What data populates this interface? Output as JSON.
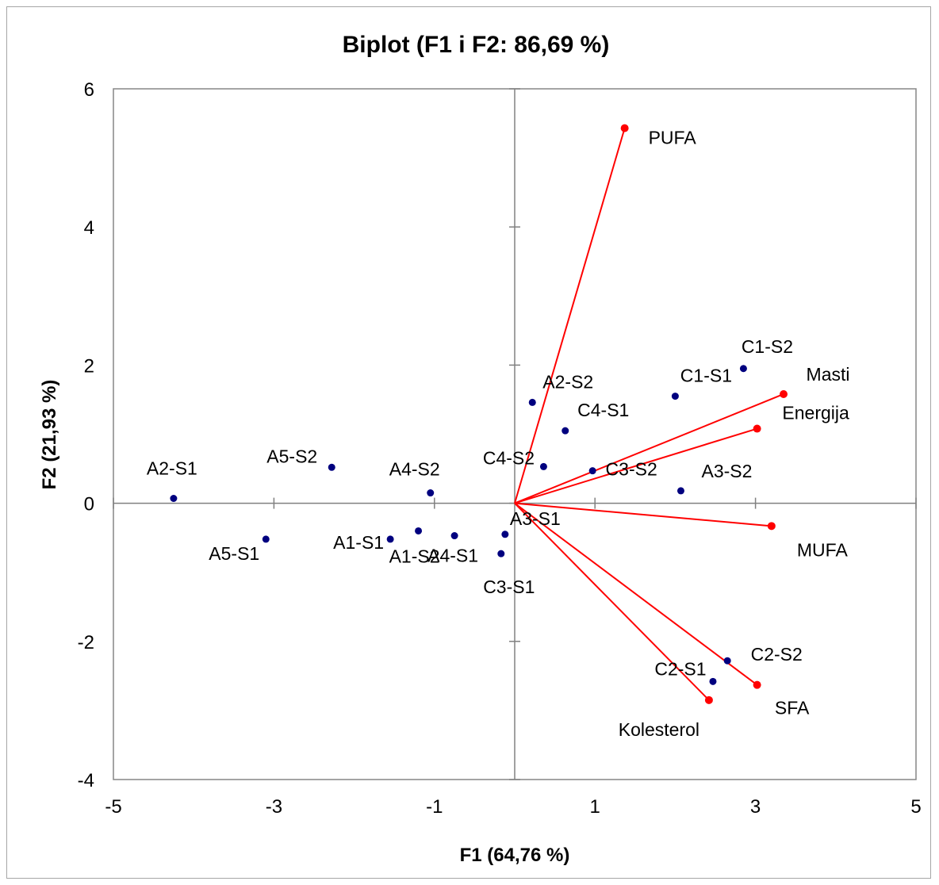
{
  "chart_data": {
    "type": "scatter",
    "title": "Biplot (F1 i F2: 86,69 %)",
    "xlabel": "F1 (64,76 %)",
    "ylabel": "F2 (21,93 %)",
    "xlim": [
      -5,
      5
    ],
    "ylim": [
      -4,
      6
    ],
    "xticks": [
      -5,
      -3,
      -1,
      1,
      3,
      5
    ],
    "yticks": [
      -4,
      -2,
      0,
      2,
      4,
      6
    ],
    "grid": false,
    "legend": "none",
    "colors": {
      "observations": "#00007f",
      "variables": "#ff0000",
      "axis": "#808080",
      "vectors": "#ff0000"
    },
    "observations": [
      {
        "label": "A2-S1",
        "x": -4.25,
        "y": 0.07
      },
      {
        "label": "A5-S2",
        "x": -2.28,
        "y": 0.52
      },
      {
        "label": "A4-S2",
        "x": -1.05,
        "y": 0.15
      },
      {
        "label": "A5-S1",
        "x": -3.1,
        "y": -0.52
      },
      {
        "label": "A1-S1",
        "x": -1.55,
        "y": -0.52
      },
      {
        "label": "A1-S2",
        "x": -1.2,
        "y": -0.4
      },
      {
        "label": "A4-S1",
        "x": -0.75,
        "y": -0.47
      },
      {
        "label": "C3-S1",
        "x": -0.17,
        "y": -0.73
      },
      {
        "label": "A3-S1",
        "x": -0.12,
        "y": -0.45
      },
      {
        "label": "A2-S2",
        "x": 0.22,
        "y": 1.46
      },
      {
        "label": "C4-S1",
        "x": 0.63,
        "y": 1.05
      },
      {
        "label": "C4-S2",
        "x": 0.36,
        "y": 0.53
      },
      {
        "label": "C3-S2",
        "x": 0.97,
        "y": 0.47
      },
      {
        "label": "C1-S1",
        "x": 2.0,
        "y": 1.55
      },
      {
        "label": "C1-S2",
        "x": 2.85,
        "y": 1.95
      },
      {
        "label": "A3-S2",
        "x": 2.07,
        "y": 0.18
      },
      {
        "label": "C2-S2",
        "x": 2.65,
        "y": -2.28
      },
      {
        "label": "C2-S1",
        "x": 2.47,
        "y": -2.58
      }
    ],
    "variables": [
      {
        "label": "PUFA",
        "x": 1.37,
        "y": 5.43
      },
      {
        "label": "Masti",
        "x": 3.35,
        "y": 1.58
      },
      {
        "label": "Energija",
        "x": 3.02,
        "y": 1.08
      },
      {
        "label": "MUFA",
        "x": 3.2,
        "y": -0.33
      },
      {
        "label": "SFA",
        "x": 3.02,
        "y": -2.63
      },
      {
        "label": "Kolesterol",
        "x": 2.42,
        "y": -2.85
      }
    ]
  }
}
